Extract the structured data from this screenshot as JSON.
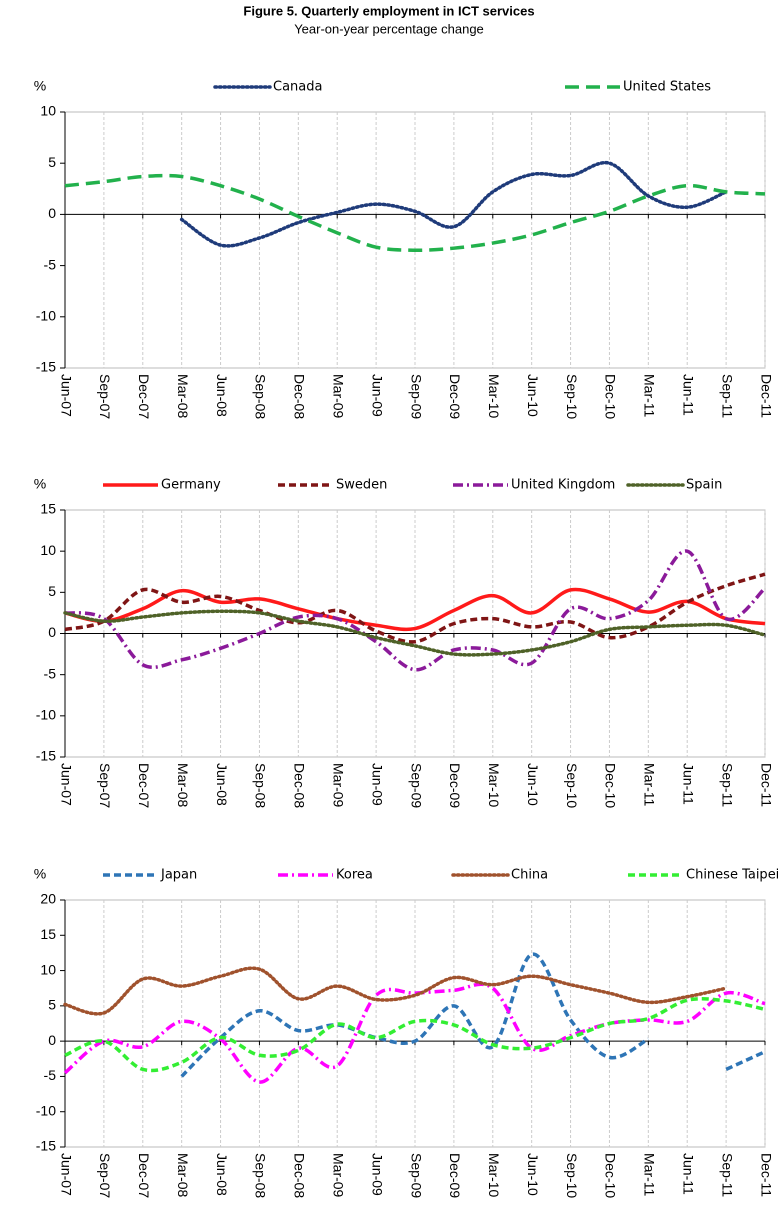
{
  "header": {
    "title": "Figure 5. Quarterly employment in ICT services",
    "subtitle": "Year-on-year percentage change"
  },
  "chart_data": [
    {
      "type": "line",
      "y_label": "%",
      "categories": [
        "Jun-07",
        "Sep-07",
        "Dec-07",
        "Mar-08",
        "Jun-08",
        "Sep-08",
        "Dec-08",
        "Mar-09",
        "Jun-09",
        "Sep-09",
        "Dec-09",
        "Mar-10",
        "Jun-10",
        "Sep-10",
        "Dec-10",
        "Mar-11",
        "Jun-11",
        "Sep-11",
        "Dec-11"
      ],
      "series": [
        {
          "name": "Canada",
          "color": "#1f3b7a",
          "dash": "dotted",
          "values": [
            null,
            null,
            null,
            -0.5,
            -3,
            -2.3,
            -0.8,
            0.2,
            1,
            0.3,
            -1.2,
            2.2,
            3.9,
            3.8,
            5,
            1.8,
            0.7,
            2.2,
            null
          ]
        },
        {
          "name": "United States",
          "color": "#22b14c",
          "dash": "long-dash",
          "values": [
            2.8,
            3.2,
            3.7,
            3.7,
            2.8,
            1.5,
            -0.2,
            -1.8,
            -3.2,
            -3.5,
            -3.3,
            -2.8,
            -2,
            -0.8,
            0.3,
            1.8,
            2.8,
            2.2,
            2
          ]
        }
      ],
      "ylim": [
        -15,
        10
      ],
      "yticks": [
        -15,
        -10,
        -5,
        0,
        5,
        10
      ],
      "xgrid": true
    },
    {
      "type": "line",
      "y_label": "%",
      "categories": [
        "Jun-07",
        "Sep-07",
        "Dec-07",
        "Mar-08",
        "Jun-08",
        "Sep-08",
        "Dec-08",
        "Mar-09",
        "Jun-09",
        "Sep-09",
        "Dec-09",
        "Mar-10",
        "Jun-10",
        "Sep-10",
        "Dec-10",
        "Mar-11",
        "Jun-11",
        "Sep-11",
        "Dec-11"
      ],
      "series": [
        {
          "name": "Germany",
          "color": "#ff1a1a",
          "dash": "solid",
          "values": [
            2.5,
            1.5,
            3,
            5.2,
            3.8,
            4.2,
            3,
            1.8,
            1,
            0.6,
            2.8,
            4.6,
            2.5,
            5.3,
            4.2,
            2.6,
            3.9,
            1.8,
            1.2
          ]
        },
        {
          "name": "Sweden",
          "color": "#7f1515",
          "dash": "dash",
          "values": [
            0.5,
            1.5,
            5.3,
            3.8,
            4.5,
            2.8,
            1.3,
            2.8,
            0.3,
            -1,
            1.2,
            1.8,
            0.8,
            1.4,
            -0.5,
            0.8,
            3.8,
            5.8,
            7.2
          ]
        },
        {
          "name": "United Kingdom",
          "color": "#8b1a9a",
          "dash": "dash-dot",
          "values": [
            2.5,
            1.8,
            -3.8,
            -3.2,
            -1.8,
            0,
            2,
            1.8,
            -1,
            -4.4,
            -2,
            -2,
            -3.6,
            3,
            1.8,
            4,
            10,
            1.8,
            5.5
          ]
        },
        {
          "name": "Spain",
          "color": "#4f6228",
          "dash": "dotted",
          "values": [
            2.5,
            1.5,
            2,
            2.5,
            2.7,
            2.5,
            1.5,
            0.8,
            -0.5,
            -1.5,
            -2.5,
            -2.5,
            -2,
            -1,
            0.5,
            0.8,
            1,
            1,
            -0.2
          ]
        }
      ],
      "ylim": [
        -15,
        15
      ],
      "yticks": [
        -15,
        -10,
        -5,
        0,
        5,
        10,
        15
      ],
      "xgrid": true
    },
    {
      "type": "line",
      "y_label": "%",
      "categories": [
        "Jun-07",
        "Sep-07",
        "Dec-07",
        "Mar-08",
        "Jun-08",
        "Sep-08",
        "Dec-08",
        "Mar-09",
        "Jun-09",
        "Sep-09",
        "Dec-09",
        "Mar-10",
        "Jun-10",
        "Sep-10",
        "Dec-10",
        "Mar-11",
        "Jun-11",
        "Sep-11",
        "Dec-11"
      ],
      "series": [
        {
          "name": "Japan",
          "color": "#2e75b6",
          "dash": "dash",
          "values": [
            null,
            null,
            null,
            -5,
            0.5,
            4.3,
            1.5,
            2.3,
            0.5,
            0,
            5,
            -0.8,
            12.3,
            3,
            -2.3,
            0.3,
            null,
            -4,
            -1.5
          ]
        },
        {
          "name": "Korea",
          "color": "#ff00ff",
          "dash": "dash-dot",
          "values": [
            -4.5,
            0,
            -0.8,
            2.8,
            0.3,
            -5.8,
            -1,
            -3.5,
            6.5,
            6.8,
            7.2,
            7.5,
            -1,
            0.8,
            2.5,
            3,
            2.8,
            6.8,
            5.3
          ]
        },
        {
          "name": "China",
          "color": "#a0522d",
          "dash": "dotted",
          "values": [
            5.2,
            4,
            8.8,
            7.8,
            9.2,
            10.2,
            6,
            7.8,
            5.9,
            6.5,
            9,
            8,
            9.2,
            8,
            6.8,
            5.5,
            6.3,
            7.5,
            null
          ]
        },
        {
          "name": "Chinese Taipei",
          "color": "#33ee33",
          "dash": "dash",
          "values": [
            -2,
            0,
            -4,
            -3,
            0.5,
            -2,
            -1.3,
            2.4,
            0.5,
            2.8,
            2.3,
            -0.5,
            -1,
            0.5,
            2.5,
            3.2,
            5.8,
            5.7,
            4.5
          ]
        }
      ],
      "ylim": [
        -15,
        20
      ],
      "yticks": [
        -15,
        -10,
        -5,
        0,
        5,
        10,
        15,
        20
      ],
      "xgrid": true
    }
  ]
}
